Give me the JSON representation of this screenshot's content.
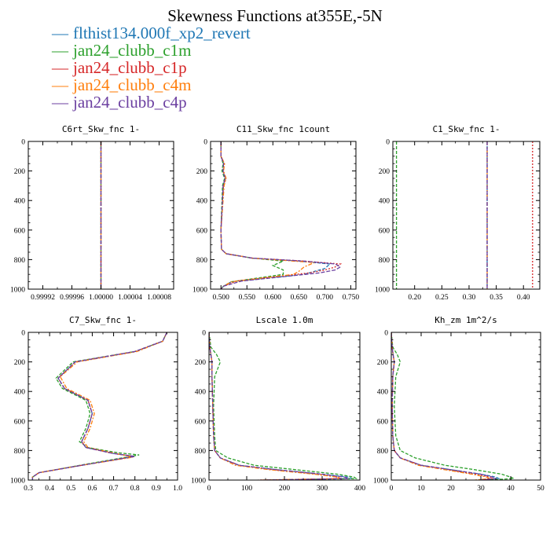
{
  "title": "Skewness Functions at355E,-5N",
  "legend": [
    {
      "label": "flthist134.000f_xp2_revert",
      "color": "#1f77b4"
    },
    {
      "label": "jan24_clubb_c1m",
      "color": "#2ca02c"
    },
    {
      "label": "jan24_clubb_c1p",
      "color": "#d62728"
    },
    {
      "label": "jan24_clubb_c4m",
      "color": "#ff7f0e"
    },
    {
      "label": "jan24_clubb_c4p",
      "color": "#6b3fa0"
    }
  ],
  "legend_dash": "—",
  "chart_data": [
    {
      "type": "line",
      "title": "C6rt_Skw_fnc   1-",
      "xlim": [
        0.9999,
        1.0001
      ],
      "xticks": [
        0.99992,
        0.99996,
        1.0,
        1.00004,
        1.00008
      ],
      "xtick_labels": [
        "0.99992",
        "0.99996",
        "1.00000",
        "1.00004",
        "1.00008"
      ],
      "ylim": [
        0,
        1000
      ],
      "yticks": [
        0,
        200,
        400,
        600,
        800,
        1000
      ],
      "ytick_labels": [
        "0",
        "200",
        "400",
        "600",
        "800",
        "1000"
      ],
      "series": [
        {
          "color": "#1f77b4",
          "x": [
            1.0,
            1.0
          ],
          "y": [
            0,
            1000
          ]
        },
        {
          "color": "#2ca02c",
          "x": [
            1.0,
            1.0
          ],
          "y": [
            0,
            1000
          ]
        },
        {
          "color": "#d62728",
          "x": [
            1.0,
            1.0
          ],
          "y": [
            0,
            1000
          ]
        },
        {
          "color": "#ff7f0e",
          "x": [
            1.0,
            1.0
          ],
          "y": [
            0,
            1000
          ]
        },
        {
          "color": "#6b3fa0",
          "x": [
            1.0,
            1.0
          ],
          "y": [
            0,
            1000
          ]
        }
      ]
    },
    {
      "type": "line",
      "title": "C11_Skw_fnc   1count",
      "xlim": [
        0.48,
        0.76
      ],
      "xticks": [
        0.5,
        0.55,
        0.6,
        0.65,
        0.7,
        0.75
      ],
      "xtick_labels": [
        "0.500",
        "0.550",
        "0.600",
        "0.650",
        "0.700",
        "0.750"
      ],
      "ylim": [
        0,
        1000
      ],
      "yticks": [
        0,
        200,
        400,
        600,
        800,
        1000
      ],
      "ytick_labels": [
        "0",
        "200",
        "400",
        "600",
        "800",
        "1000"
      ],
      "series": [
        {
          "color": "#1f77b4",
          "x": [
            0.5,
            0.5,
            0.505,
            0.503,
            0.508,
            0.504,
            0.503,
            0.5,
            0.501,
            0.51,
            0.56,
            0.65,
            0.71,
            0.7,
            0.68,
            0.66,
            0.52,
            0.505,
            0.5
          ],
          "y": [
            0,
            100,
            150,
            200,
            250,
            300,
            400,
            600,
            730,
            760,
            790,
            810,
            830,
            860,
            880,
            900,
            950,
            980,
            1000
          ]
        },
        {
          "color": "#2ca02c",
          "x": [
            0.5,
            0.5,
            0.504,
            0.502,
            0.507,
            0.503,
            0.502,
            0.5,
            0.501,
            0.51,
            0.56,
            0.62,
            0.6,
            0.62,
            0.62,
            0.58,
            0.52,
            0.505,
            0.5
          ],
          "y": [
            0,
            100,
            150,
            200,
            250,
            300,
            400,
            600,
            730,
            760,
            790,
            810,
            840,
            870,
            900,
            920,
            950,
            980,
            1000
          ]
        },
        {
          "color": "#d62728",
          "x": [
            0.5,
            0.5,
            0.506,
            0.504,
            0.509,
            0.505,
            0.503,
            0.5,
            0.501,
            0.51,
            0.56,
            0.66,
            0.73,
            0.72,
            0.7,
            0.67,
            0.53,
            0.505,
            0.5
          ],
          "y": [
            0,
            100,
            150,
            200,
            250,
            300,
            400,
            600,
            730,
            760,
            790,
            810,
            830,
            850,
            870,
            890,
            945,
            980,
            1000
          ]
        },
        {
          "color": "#ff7f0e",
          "x": [
            0.5,
            0.5,
            0.507,
            0.505,
            0.51,
            0.506,
            0.504,
            0.5,
            0.501,
            0.51,
            0.56,
            0.64,
            0.68,
            0.66,
            0.65,
            0.64,
            0.52,
            0.505,
            0.5
          ],
          "y": [
            0,
            100,
            150,
            200,
            250,
            300,
            400,
            600,
            730,
            760,
            790,
            810,
            820,
            850,
            880,
            900,
            950,
            980,
            1000
          ]
        },
        {
          "color": "#6b3fa0",
          "x": [
            0.5,
            0.5,
            0.505,
            0.504,
            0.508,
            0.504,
            0.503,
            0.5,
            0.501,
            0.51,
            0.56,
            0.66,
            0.72,
            0.73,
            0.72,
            0.69,
            0.54,
            0.505,
            0.5
          ],
          "y": [
            0,
            100,
            150,
            200,
            250,
            300,
            400,
            600,
            730,
            760,
            790,
            810,
            830,
            850,
            870,
            890,
            945,
            980,
            1000
          ]
        }
      ]
    },
    {
      "type": "line",
      "title": "C1_Skw_fnc   1-",
      "xlim": [
        0.16,
        0.43
      ],
      "xticks": [
        0.2,
        0.25,
        0.3,
        0.35,
        0.4
      ],
      "xtick_labels": [
        "0.20",
        "0.25",
        "0.30",
        "0.35",
        "0.40"
      ],
      "ylim": [
        0,
        1000
      ],
      "yticks": [
        0,
        200,
        400,
        600,
        800,
        1000
      ],
      "ytick_labels": [
        "0",
        "200",
        "400",
        "600",
        "800",
        "1000"
      ],
      "series": [
        {
          "color": "#1f77b4",
          "x": [
            0.3333,
            0.3333
          ],
          "y": [
            0,
            1000
          ]
        },
        {
          "color": "#2ca02c",
          "x": [
            0.1667,
            0.1667
          ],
          "y": [
            0,
            1000
          ]
        },
        {
          "color": "#d62728",
          "x": [
            0.4167,
            0.4167
          ],
          "y": [
            0,
            1000
          ]
        },
        {
          "color": "#ff7f0e",
          "x": [
            0.3333,
            0.3333
          ],
          "y": [
            0,
            1000
          ]
        },
        {
          "color": "#6b3fa0",
          "x": [
            0.3333,
            0.3333
          ],
          "y": [
            0,
            1000
          ]
        }
      ]
    },
    {
      "type": "line",
      "title": "C7_Skw_fnc   1-",
      "xlim": [
        0.3,
        1.0
      ],
      "xticks": [
        0.3,
        0.4,
        0.5,
        0.6,
        0.7,
        0.8,
        0.9,
        1.0
      ],
      "xtick_labels": [
        "0.3",
        "0.4",
        "0.5",
        "0.6",
        "0.7",
        "0.8",
        "0.9",
        "1.0"
      ],
      "ylim": [
        0,
        1000
      ],
      "yticks": [
        0,
        200,
        400,
        600,
        800,
        1000
      ],
      "ytick_labels": [
        "0",
        "200",
        "400",
        "600",
        "800",
        "1000"
      ],
      "series": [
        {
          "color": "#1f77b4",
          "x": [
            0.95,
            0.93,
            0.8,
            0.52,
            0.44,
            0.47,
            0.58,
            0.6,
            0.58,
            0.55,
            0.57,
            0.7,
            0.8,
            0.55,
            0.35,
            0.32,
            0.32
          ],
          "y": [
            0,
            60,
            130,
            200,
            310,
            380,
            460,
            550,
            650,
            740,
            780,
            820,
            840,
            900,
            950,
            980,
            1000
          ]
        },
        {
          "color": "#2ca02c",
          "x": [
            0.95,
            0.93,
            0.8,
            0.51,
            0.43,
            0.46,
            0.57,
            0.59,
            0.57,
            0.54,
            0.58,
            0.72,
            0.82,
            0.56,
            0.35,
            0.32,
            0.32
          ],
          "y": [
            0,
            60,
            130,
            200,
            310,
            380,
            460,
            550,
            650,
            740,
            780,
            815,
            830,
            895,
            950,
            980,
            1000
          ]
        },
        {
          "color": "#d62728",
          "x": [
            0.95,
            0.93,
            0.8,
            0.52,
            0.44,
            0.47,
            0.58,
            0.6,
            0.58,
            0.55,
            0.57,
            0.7,
            0.8,
            0.55,
            0.35,
            0.32,
            0.32
          ],
          "y": [
            0,
            60,
            130,
            200,
            310,
            380,
            460,
            550,
            650,
            740,
            780,
            820,
            840,
            900,
            950,
            980,
            1000
          ]
        },
        {
          "color": "#ff7f0e",
          "x": [
            0.95,
            0.93,
            0.81,
            0.53,
            0.45,
            0.48,
            0.59,
            0.61,
            0.59,
            0.56,
            0.58,
            0.71,
            0.79,
            0.55,
            0.35,
            0.32,
            0.32
          ],
          "y": [
            0,
            60,
            130,
            200,
            300,
            380,
            460,
            550,
            650,
            740,
            780,
            820,
            845,
            900,
            950,
            980,
            1000
          ]
        },
        {
          "color": "#6b3fa0",
          "x": [
            0.95,
            0.93,
            0.8,
            0.52,
            0.44,
            0.47,
            0.58,
            0.6,
            0.58,
            0.55,
            0.57,
            0.7,
            0.8,
            0.55,
            0.35,
            0.32,
            0.32
          ],
          "y": [
            0,
            60,
            130,
            200,
            310,
            380,
            460,
            550,
            650,
            740,
            780,
            820,
            840,
            900,
            950,
            980,
            1000
          ]
        }
      ]
    },
    {
      "type": "line",
      "title": "Lscale   1.0m",
      "xlim": [
        0,
        400
      ],
      "xticks": [
        0,
        100,
        200,
        300,
        400
      ],
      "xtick_labels": [
        "0",
        "100",
        "200",
        "300",
        "400"
      ],
      "ylim": [
        0,
        1000
      ],
      "yticks": [
        0,
        200,
        400,
        600,
        800,
        1000
      ],
      "ytick_labels": [
        "0",
        "200",
        "400",
        "600",
        "800",
        "1000"
      ],
      "series": [
        {
          "color": "#1f77b4",
          "x": [
            0,
            2,
            5,
            8,
            8,
            10,
            12,
            15,
            30,
            80,
            180,
            300,
            370,
            380,
            150
          ],
          "y": [
            0,
            100,
            150,
            200,
            300,
            500,
            700,
            800,
            850,
            900,
            930,
            960,
            980,
            990,
            1000
          ]
        },
        {
          "color": "#2ca02c",
          "x": [
            0,
            5,
            20,
            30,
            15,
            12,
            15,
            18,
            50,
            120,
            230,
            340,
            385,
            390,
            160
          ],
          "y": [
            0,
            100,
            150,
            200,
            300,
            500,
            700,
            800,
            850,
            900,
            930,
            960,
            980,
            990,
            1000
          ]
        },
        {
          "color": "#d62728",
          "x": [
            0,
            2,
            5,
            8,
            8,
            10,
            12,
            15,
            30,
            80,
            170,
            290,
            340,
            350,
            130
          ],
          "y": [
            0,
            100,
            150,
            200,
            300,
            500,
            700,
            800,
            850,
            900,
            930,
            960,
            980,
            990,
            1000
          ]
        },
        {
          "color": "#ff7f0e",
          "x": [
            0,
            2,
            5,
            8,
            8,
            10,
            12,
            15,
            30,
            70,
            160,
            280,
            340,
            350,
            140
          ],
          "y": [
            0,
            100,
            150,
            200,
            300,
            500,
            700,
            800,
            850,
            900,
            930,
            960,
            980,
            990,
            1000
          ]
        },
        {
          "color": "#6b3fa0",
          "x": [
            0,
            2,
            5,
            8,
            8,
            10,
            12,
            15,
            30,
            80,
            180,
            300,
            360,
            370,
            150
          ],
          "y": [
            0,
            100,
            150,
            200,
            300,
            500,
            700,
            800,
            850,
            900,
            930,
            960,
            980,
            990,
            1000
          ]
        }
      ]
    },
    {
      "type": "line",
      "title": "Kh_zm   1m^2/s",
      "xlim": [
        0,
        50
      ],
      "xticks": [
        0,
        10,
        20,
        30,
        40,
        50
      ],
      "xtick_labels": [
        "0",
        "10",
        "20",
        "30",
        "40",
        "50"
      ],
      "ylim": [
        0,
        1000
      ],
      "yticks": [
        0,
        200,
        400,
        600,
        800,
        1000
      ],
      "ytick_labels": [
        "0",
        "200",
        "400",
        "600",
        "800",
        "1000"
      ],
      "series": [
        {
          "color": "#1f77b4",
          "x": [
            0,
            0.3,
            0.6,
            1.0,
            0.5,
            0.3,
            0.5,
            1,
            3,
            10,
            20,
            30,
            35,
            36,
            30
          ],
          "y": [
            0,
            100,
            150,
            200,
            300,
            500,
            700,
            800,
            850,
            900,
            930,
            960,
            980,
            990,
            1000
          ]
        },
        {
          "color": "#2ca02c",
          "x": [
            0,
            0.5,
            2,
            3,
            1.5,
            1,
            1.5,
            3,
            8,
            18,
            28,
            37,
            40,
            41,
            32
          ],
          "y": [
            0,
            100,
            150,
            200,
            300,
            500,
            700,
            800,
            850,
            900,
            930,
            960,
            980,
            990,
            1000
          ]
        },
        {
          "color": "#d62728",
          "x": [
            0,
            0.3,
            0.6,
            1.0,
            0.5,
            0.3,
            0.5,
            1,
            3,
            10,
            19,
            28,
            33,
            34,
            29
          ],
          "y": [
            0,
            100,
            150,
            200,
            300,
            500,
            700,
            800,
            850,
            900,
            930,
            960,
            980,
            990,
            1000
          ]
        },
        {
          "color": "#ff7f0e",
          "x": [
            0,
            0.3,
            0.6,
            1.0,
            0.5,
            0.3,
            0.5,
            1,
            3,
            9,
            18,
            27,
            32,
            33,
            28
          ],
          "y": [
            0,
            100,
            150,
            200,
            300,
            500,
            700,
            800,
            850,
            900,
            930,
            960,
            980,
            990,
            1000
          ]
        },
        {
          "color": "#6b3fa0",
          "x": [
            0,
            0.3,
            0.6,
            1.0,
            0.5,
            0.3,
            0.5,
            1,
            3,
            10,
            20,
            30,
            34,
            35,
            30
          ],
          "y": [
            0,
            100,
            150,
            200,
            300,
            500,
            700,
            800,
            850,
            900,
            930,
            960,
            980,
            990,
            1000
          ]
        }
      ]
    }
  ]
}
